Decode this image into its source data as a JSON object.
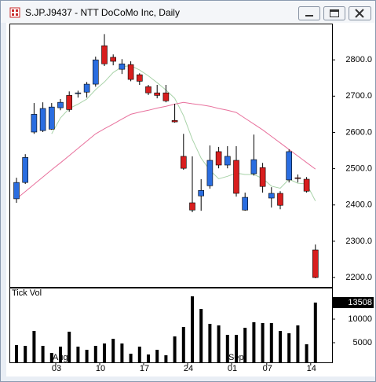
{
  "window_title": "S.JP.J9437 - NTT DoCoMo Inc, Daily",
  "chart_data": [
    {
      "type": "candlestick",
      "up_color": "#2a6de0",
      "down_color": "#d81e1e",
      "open": [
        2417,
        2462,
        2601,
        2605,
        2609,
        2668,
        2702,
        2707,
        2711,
        2733,
        2839,
        2807,
        2774,
        2787,
        2759,
        2726,
        2709,
        2709,
        2633,
        2534,
        2406,
        2425,
        2453,
        2547,
        2510,
        2523,
        2386,
        2486,
        2503,
        2419,
        2432,
        2469,
        2475,
        2471,
        2276
      ],
      "high": [
        2475,
        2540,
        2681,
        2683,
        2681,
        2692,
        2713,
        2715,
        2739,
        2809,
        2871,
        2815,
        2802,
        2796,
        2763,
        2731,
        2731,
        2731,
        2679,
        2596,
        2534,
        2471,
        2564,
        2560,
        2562,
        2562,
        2434,
        2594,
        2516,
        2449,
        2438,
        2553,
        2484,
        2477,
        2291
      ],
      "low": [
        2406,
        2458,
        2596,
        2601,
        2607,
        2661,
        2657,
        2696,
        2696,
        2726,
        2783,
        2785,
        2761,
        2741,
        2731,
        2703,
        2694,
        2683,
        2627,
        2497,
        2380,
        2384,
        2445,
        2501,
        2501,
        2423,
        2384,
        2481,
        2434,
        2393,
        2388,
        2462,
        2462,
        2434,
        2198
      ],
      "close": [
        2462,
        2531,
        2650,
        2666,
        2670,
        2683,
        2663,
        2709,
        2733,
        2800,
        2789,
        2796,
        2789,
        2746,
        2741,
        2709,
        2702,
        2687,
        2629,
        2501,
        2386,
        2440,
        2523,
        2510,
        2534,
        2432,
        2421,
        2525,
        2451,
        2432,
        2399,
        2547,
        2473,
        2438,
        2200
      ],
      "series": [
        {
          "color": "#a9d3a9",
          "values": [
            null,
            null,
            null,
            null,
            2596,
            2640,
            2666,
            2678,
            2692,
            2718,
            2739,
            2765,
            2781,
            2784,
            2772,
            2756,
            2737,
            2717,
            2694,
            2646,
            2581,
            2529,
            2496,
            2472,
            2479,
            2488,
            2484,
            2484,
            2473,
            2452,
            2446,
            2471,
            2460,
            2458,
            2411
          ]
        },
        {
          "color": "#e8709c",
          "values": [
            2417,
            2437,
            2457,
            2477,
            2497,
            2516,
            2536,
            2556,
            2576,
            2596,
            2610,
            2623,
            2637,
            2650,
            2656,
            2661,
            2667,
            2672,
            2678,
            2683,
            2679,
            2676,
            2672,
            2666,
            2661,
            2655,
            2639,
            2623,
            2607,
            2589,
            2571,
            2553,
            2535,
            2517,
            2499
          ]
        }
      ],
      "ylim": [
        2172,
        2900
      ],
      "yticks": [
        {
          "value": 2200,
          "label": "2200.0"
        },
        {
          "value": 2300,
          "label": "2300.0"
        },
        {
          "value": 2400,
          "label": "2400.0"
        },
        {
          "value": 2500,
          "label": "2500.0"
        },
        {
          "value": 2600,
          "label": "2600.0"
        },
        {
          "value": 2700,
          "label": "2700.0"
        },
        {
          "value": 2800,
          "label": "2800.0"
        }
      ]
    },
    {
      "type": "bar",
      "title": "Tick Vol",
      "color": "#000000",
      "categories": [
        null,
        null,
        null,
        null,
        null,
        "03",
        null,
        null,
        null,
        null,
        "10",
        null,
        null,
        null,
        null,
        "17",
        null,
        null,
        null,
        null,
        "24",
        null,
        null,
        null,
        null,
        "01",
        null,
        null,
        null,
        "07",
        null,
        null,
        null,
        null,
        "14"
      ],
      "months": [
        null,
        null,
        null,
        null,
        null,
        "Aug",
        null,
        null,
        null,
        null,
        null,
        null,
        null,
        null,
        null,
        null,
        null,
        null,
        null,
        null,
        null,
        null,
        null,
        null,
        null,
        "Sep",
        null,
        null,
        null,
        null,
        null,
        null,
        null,
        null,
        null
      ],
      "values": [
        4500,
        4333,
        7500,
        4333,
        2833,
        4167,
        7333,
        4167,
        3500,
        4333,
        4833,
        5833,
        4833,
        2667,
        4167,
        2500,
        3500,
        2333,
        6333,
        8333,
        14833,
        12167,
        9000,
        8667,
        6667,
        6667,
        8167,
        9333,
        9167,
        9167,
        7500,
        7000,
        8667,
        4667,
        13508
      ],
      "ylim": [
        833,
        16667
      ],
      "yticks": [
        5000,
        10000
      ]
    }
  ]
}
